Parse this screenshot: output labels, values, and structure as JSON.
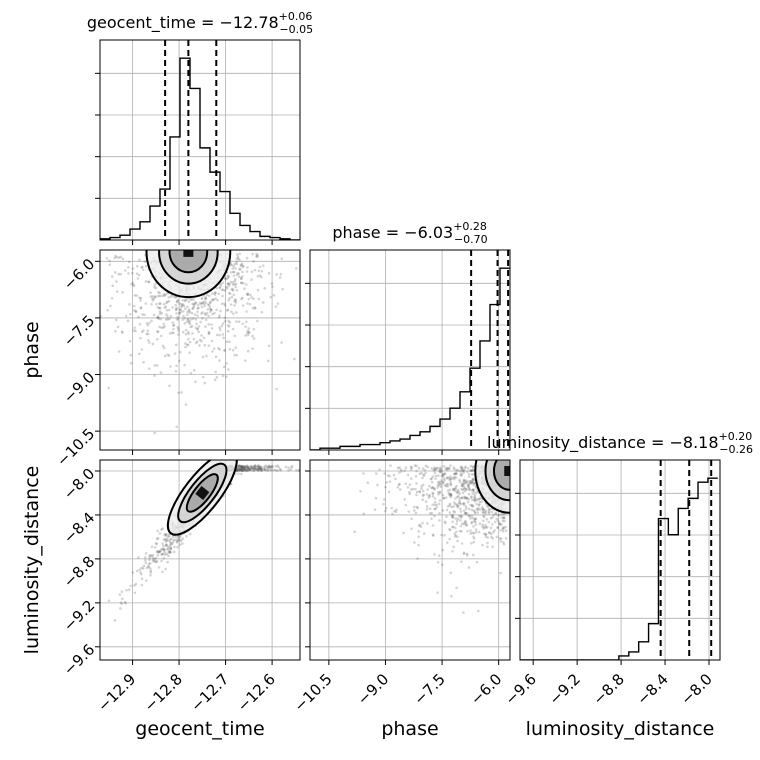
{
  "chart_data": {
    "type": "scatter",
    "parameters": [
      {
        "name": "geocent_time",
        "label": "geocent_time",
        "title_main": "geocent_time = −12.78",
        "title_plus": "+0.06",
        "title_minus": "−0.05",
        "range": [
          -12.97,
          -12.54
        ],
        "ticks": [
          -12.9,
          -12.8,
          -12.7,
          -12.6
        ],
        "tick_labels": [
          "−12.9",
          "−12.8",
          "−12.7",
          "−12.6"
        ],
        "quantiles": [
          -12.83,
          -12.78,
          -12.72
        ],
        "hist_edges": [
          -12.97,
          -12.9485,
          -12.927,
          -12.9055,
          -12.884,
          -12.8625,
          -12.841,
          -12.8195,
          -12.798,
          -12.7765,
          -12.755,
          -12.7335,
          -12.712,
          -12.6905,
          -12.669,
          -12.6475,
          -12.626,
          -12.6045,
          -12.583,
          -12.5615,
          -12.54
        ],
        "hist_counts": [
          1,
          2,
          4,
          9,
          15,
          28,
          42,
          85,
          150,
          125,
          76,
          56,
          40,
          22,
          12,
          7,
          3,
          2,
          1,
          0
        ]
      },
      {
        "name": "phase",
        "label": "phase",
        "title_main": "phase = −6.03",
        "title_plus": "+0.28",
        "title_minus": "−0.70",
        "range": [
          -11.0,
          -5.7
        ],
        "ticks": [
          -10.5,
          -9.0,
          -7.5,
          -6.0
        ],
        "tick_labels": [
          "−10.5",
          "−9.0",
          "−7.5",
          "−6.0"
        ],
        "quantiles": [
          -6.73,
          -6.03,
          -5.75
        ],
        "hist_edges": [
          -11.0,
          -10.735,
          -10.47,
          -10.205,
          -9.94,
          -9.675,
          -9.41,
          -9.145,
          -8.88,
          -8.615,
          -8.35,
          -8.085,
          -7.82,
          -7.555,
          -7.29,
          -7.025,
          -6.76,
          -6.495,
          -6.23,
          -5.965,
          -5.7
        ],
        "hist_counts": [
          0,
          1,
          1,
          2,
          2,
          3,
          3,
          4,
          5,
          6,
          8,
          10,
          13,
          17,
          23,
          32,
          45,
          60,
          80,
          100
        ]
      },
      {
        "name": "luminosity_distance",
        "label": "luminosity_distance",
        "title_main": "luminosity_distance = −8.18",
        "title_plus": "+0.20",
        "title_minus": "−0.26",
        "range": [
          -9.72,
          -7.9
        ],
        "ticks": [
          -9.6,
          -9.2,
          -8.8,
          -8.4,
          -8.0
        ],
        "tick_labels": [
          "−9.6",
          "−9.2",
          "−8.8",
          "−8.4",
          "−8.0"
        ],
        "quantiles": [
          -8.44,
          -8.18,
          -7.98
        ],
        "hist_edges": [
          -9.72,
          -9.63,
          -9.54,
          -9.45,
          -9.36,
          -9.27,
          -9.18,
          -9.09,
          -9.0,
          -8.91,
          -8.82,
          -8.73,
          -8.64,
          -8.55,
          -8.46,
          -8.37,
          -8.28,
          -8.19,
          -8.1,
          -8.01,
          -7.92
        ],
        "hist_counts": [
          0,
          0,
          0,
          0,
          0,
          0,
          0,
          0,
          0,
          0,
          2,
          4,
          9,
          18,
          70,
          62,
          75,
          80,
          88,
          90
        ]
      }
    ],
    "grid": true,
    "legend": "none"
  }
}
